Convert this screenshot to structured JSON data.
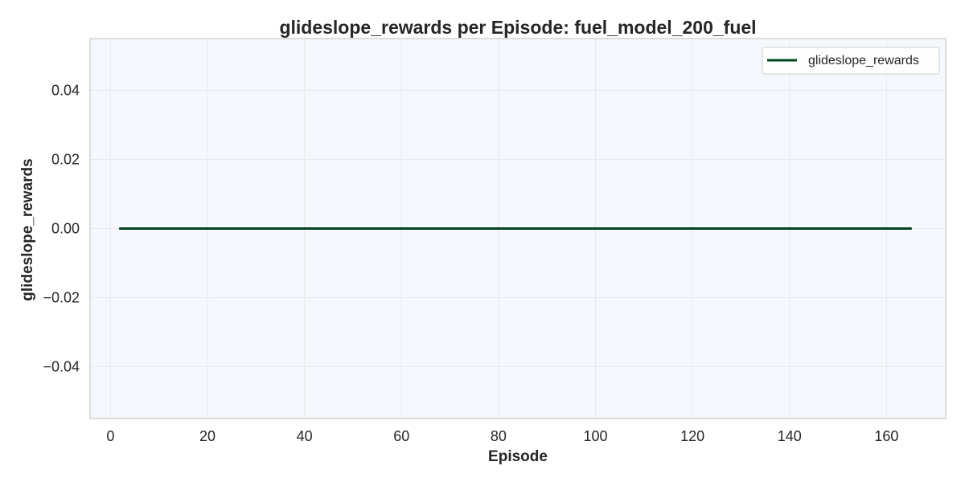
{
  "chart_data": {
    "type": "line",
    "title": "glideslope_rewards per Episode: fuel_model_200_fuel",
    "xlabel": "Episode",
    "ylabel": "glideslope_rewards",
    "xlim": [
      -4.2,
      172.2
    ],
    "ylim": [
      -0.055,
      0.055
    ],
    "xticks": [
      0,
      20,
      40,
      60,
      80,
      100,
      120,
      140,
      160
    ],
    "xtick_labels": [
      "0",
      "20",
      "40",
      "60",
      "80",
      "100",
      "120",
      "140",
      "160"
    ],
    "yticks": [
      0.04,
      0.02,
      0.0,
      -0.02,
      -0.04
    ],
    "ytick_labels": [
      "0.04",
      "0.02",
      "0.00",
      "−0.02",
      "−0.04"
    ],
    "grid": true,
    "legend_position": "top-right",
    "series": [
      {
        "name": "glideslope_rewards",
        "color": "#00441b",
        "x": [
          2,
          165
        ],
        "y": [
          0,
          0
        ]
      }
    ]
  },
  "colors": {
    "plot_background": "#f5f9fd",
    "axes_edge": "#cccccc",
    "grid": "#e6e9ed",
    "text": "#262626"
  }
}
